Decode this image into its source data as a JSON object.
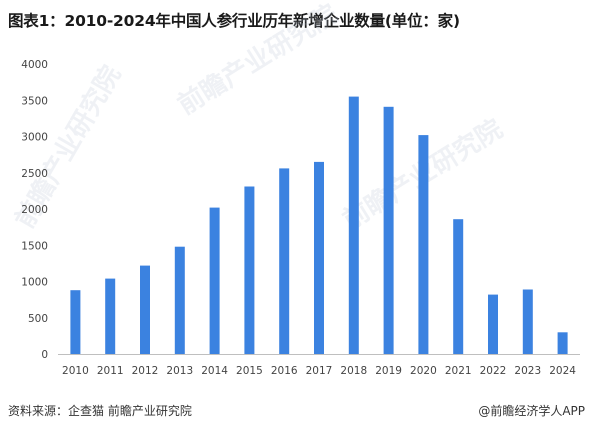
{
  "title": "图表1：2010-2024年中国人参行业历年新增企业数量(单位：家)",
  "footer": {
    "source": "资料来源：企查猫 前瞻产业研究院",
    "brand": "@前瞻经济学人APP"
  },
  "watermark": {
    "text": "前瞻产业研究院"
  },
  "colors": {
    "bar": "#3b82e0",
    "axis": "#bfbfbf"
  },
  "chart_data": {
    "type": "bar",
    "title": "图表1：2010-2024年中国人参行业历年新增企业数量(单位：家)",
    "xlabel": "",
    "ylabel": "",
    "categories": [
      "2010",
      "2011",
      "2012",
      "2013",
      "2014",
      "2015",
      "2016",
      "2017",
      "2018",
      "2019",
      "2020",
      "2021",
      "2022",
      "2023",
      "2024"
    ],
    "values": [
      880,
      1040,
      1220,
      1480,
      2020,
      2310,
      2560,
      2650,
      3550,
      3410,
      3020,
      1860,
      820,
      890,
      300
    ],
    "ylim": [
      0,
      4000
    ],
    "yticks": [
      0,
      500,
      1000,
      1500,
      2000,
      2500,
      3000,
      3500,
      4000
    ],
    "grid": false,
    "legend": "none"
  }
}
